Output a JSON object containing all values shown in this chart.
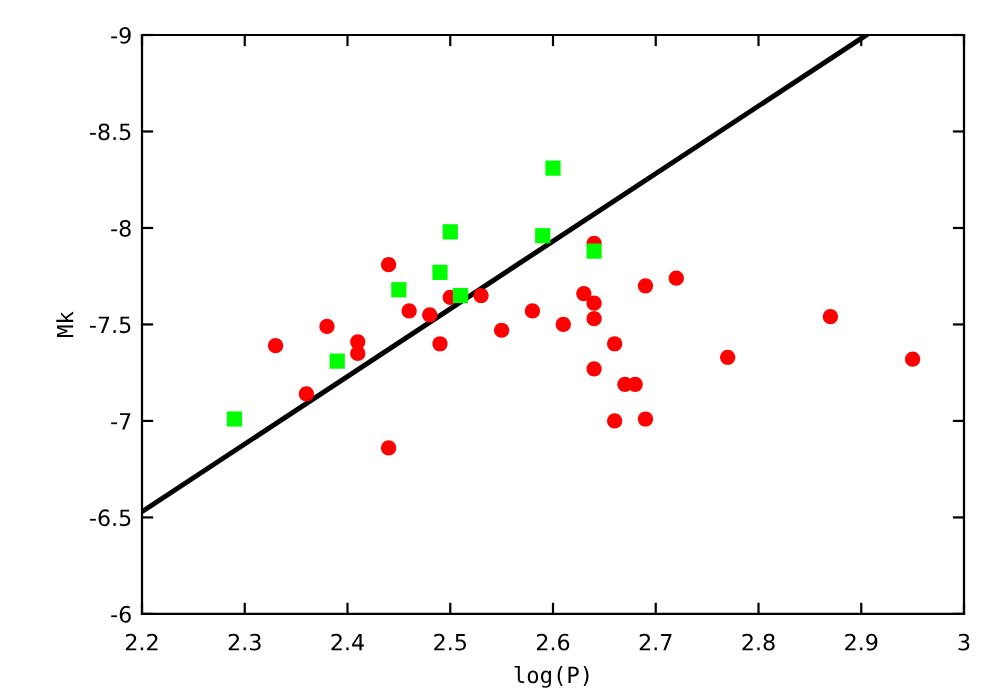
{
  "chart_data": {
    "type": "scatter",
    "xlabel": "log(P)",
    "ylabel": "Mk",
    "xlim": [
      2.2,
      3
    ],
    "ylim": [
      -6,
      -9
    ],
    "xticks": [
      2.2,
      2.3,
      2.4,
      2.5,
      2.6,
      2.7,
      2.8,
      2.9,
      3
    ],
    "yticks": [
      -6,
      -6.5,
      -7,
      -7.5,
      -8,
      -8.5,
      -9
    ],
    "grid": false,
    "legend": false,
    "series": [
      {
        "type": "scatter",
        "marker": "circle",
        "color": "#ff0000",
        "x": [
          2.33,
          2.36,
          2.38,
          2.41,
          2.41,
          2.44,
          2.44,
          2.46,
          2.48,
          2.49,
          2.5,
          2.53,
          2.55,
          2.58,
          2.61,
          2.63,
          2.64,
          2.64,
          2.64,
          2.64,
          2.66,
          2.66,
          2.67,
          2.68,
          2.69,
          2.69,
          2.72,
          2.77,
          2.87,
          2.95
        ],
        "values": [
          -7.39,
          -7.14,
          -7.49,
          -7.41,
          -7.35,
          -7.81,
          -6.86,
          -7.57,
          -7.55,
          -7.4,
          -7.64,
          -7.65,
          -7.47,
          -7.57,
          -7.5,
          -7.66,
          -7.92,
          -7.61,
          -7.53,
          -7.27,
          -7.4,
          -7.0,
          -7.19,
          -7.19,
          -7.7,
          -7.01,
          -7.74,
          -7.33,
          -7.54,
          -7.32
        ]
      },
      {
        "type": "scatter",
        "marker": "square",
        "color": "#00ff00",
        "x": [
          2.29,
          2.39,
          2.45,
          2.49,
          2.5,
          2.51,
          2.59,
          2.6,
          2.64
        ],
        "values": [
          -7.01,
          -7.31,
          -7.68,
          -7.77,
          -7.98,
          -7.65,
          -7.96,
          -8.31,
          -7.88
        ]
      },
      {
        "type": "line",
        "marker": "none",
        "line_style": "solid",
        "color": "#000000",
        "x": [
          2.2,
          2.905
        ],
        "values": [
          -6.53,
          -9
        ]
      }
    ]
  }
}
